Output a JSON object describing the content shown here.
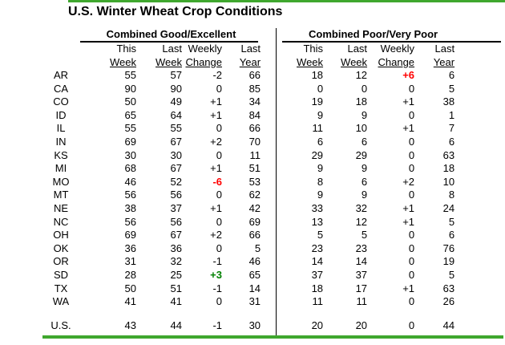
{
  "title": "U.S. Winter Wheat Crop Conditions",
  "sections": {
    "good_excellent": "Combined Good/Excellent",
    "poor_very_poor": "Combined Poor/Very Poor"
  },
  "column_headers": {
    "line1": [
      "This",
      "Last",
      "Weekly",
      "Last"
    ],
    "line2": [
      "Week",
      "Week",
      "Change",
      "Year"
    ]
  },
  "colors": {
    "accent_line_green": "#3fa72e",
    "change_negative_red": "#ff0000",
    "change_positive_green": "#008000"
  },
  "rows": [
    {
      "state": "AR",
      "ge": [
        "55",
        "57",
        "-2",
        "66"
      ],
      "ge_hl": "",
      "pvp": [
        "18",
        "12",
        "+6",
        "6"
      ],
      "pvp_hl": "red"
    },
    {
      "state": "CA",
      "ge": [
        "90",
        "90",
        "0",
        "85"
      ],
      "ge_hl": "",
      "pvp": [
        "0",
        "0",
        "0",
        "5"
      ],
      "pvp_hl": ""
    },
    {
      "state": "CO",
      "ge": [
        "50",
        "49",
        "+1",
        "34"
      ],
      "ge_hl": "",
      "pvp": [
        "19",
        "18",
        "+1",
        "38"
      ],
      "pvp_hl": ""
    },
    {
      "state": "ID",
      "ge": [
        "65",
        "64",
        "+1",
        "84"
      ],
      "ge_hl": "",
      "pvp": [
        "9",
        "9",
        "0",
        "1"
      ],
      "pvp_hl": ""
    },
    {
      "state": "IL",
      "ge": [
        "55",
        "55",
        "0",
        "66"
      ],
      "ge_hl": "",
      "pvp": [
        "11",
        "10",
        "+1",
        "7"
      ],
      "pvp_hl": ""
    },
    {
      "state": "IN",
      "ge": [
        "69",
        "67",
        "+2",
        "70"
      ],
      "ge_hl": "",
      "pvp": [
        "6",
        "6",
        "0",
        "6"
      ],
      "pvp_hl": ""
    },
    {
      "state": "KS",
      "ge": [
        "30",
        "30",
        "0",
        "11"
      ],
      "ge_hl": "",
      "pvp": [
        "29",
        "29",
        "0",
        "63"
      ],
      "pvp_hl": ""
    },
    {
      "state": "MI",
      "ge": [
        "68",
        "67",
        "+1",
        "51"
      ],
      "ge_hl": "",
      "pvp": [
        "9",
        "9",
        "0",
        "18"
      ],
      "pvp_hl": ""
    },
    {
      "state": "MO",
      "ge": [
        "46",
        "52",
        "-6",
        "53"
      ],
      "ge_hl": "red",
      "pvp": [
        "8",
        "6",
        "+2",
        "10"
      ],
      "pvp_hl": ""
    },
    {
      "state": "MT",
      "ge": [
        "56",
        "56",
        "0",
        "62"
      ],
      "ge_hl": "",
      "pvp": [
        "9",
        "9",
        "0",
        "8"
      ],
      "pvp_hl": ""
    },
    {
      "state": "NE",
      "ge": [
        "38",
        "37",
        "+1",
        "42"
      ],
      "ge_hl": "",
      "pvp": [
        "33",
        "32",
        "+1",
        "24"
      ],
      "pvp_hl": ""
    },
    {
      "state": "NC",
      "ge": [
        "56",
        "56",
        "0",
        "69"
      ],
      "ge_hl": "",
      "pvp": [
        "13",
        "12",
        "+1",
        "5"
      ],
      "pvp_hl": ""
    },
    {
      "state": "OH",
      "ge": [
        "69",
        "67",
        "+2",
        "66"
      ],
      "ge_hl": "",
      "pvp": [
        "5",
        "5",
        "0",
        "6"
      ],
      "pvp_hl": ""
    },
    {
      "state": "OK",
      "ge": [
        "36",
        "36",
        "0",
        "5"
      ],
      "ge_hl": "",
      "pvp": [
        "23",
        "23",
        "0",
        "76"
      ],
      "pvp_hl": ""
    },
    {
      "state": "OR",
      "ge": [
        "31",
        "32",
        "-1",
        "46"
      ],
      "ge_hl": "",
      "pvp": [
        "14",
        "14",
        "0",
        "19"
      ],
      "pvp_hl": ""
    },
    {
      "state": "SD",
      "ge": [
        "28",
        "25",
        "+3",
        "65"
      ],
      "ge_hl": "green",
      "pvp": [
        "37",
        "37",
        "0",
        "5"
      ],
      "pvp_hl": ""
    },
    {
      "state": "TX",
      "ge": [
        "50",
        "51",
        "-1",
        "14"
      ],
      "ge_hl": "",
      "pvp": [
        "18",
        "17",
        "+1",
        "63"
      ],
      "pvp_hl": ""
    },
    {
      "state": "WA",
      "ge": [
        "41",
        "41",
        "0",
        "31"
      ],
      "ge_hl": "",
      "pvp": [
        "11",
        "11",
        "0",
        "26"
      ],
      "pvp_hl": ""
    }
  ],
  "total_row": {
    "state": "U.S.",
    "ge": [
      "43",
      "44",
      "-1",
      "30"
    ],
    "ge_hl": "",
    "pvp": [
      "20",
      "20",
      "0",
      "44"
    ],
    "pvp_hl": ""
  }
}
